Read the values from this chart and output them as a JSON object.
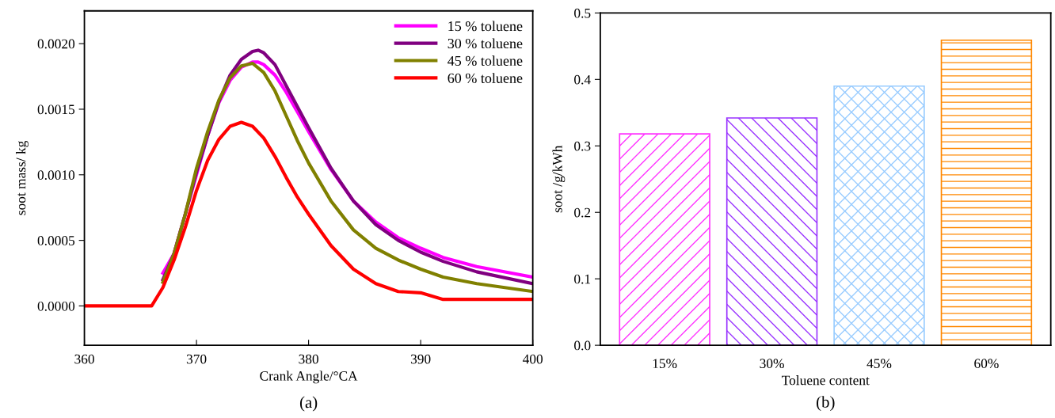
{
  "chart_data": [
    {
      "type": "line",
      "xlabel": "Crank Angle/°CA",
      "ylabel": "soot mass/ kg",
      "annotations": [
        "(a)"
      ],
      "legend": "top right",
      "grid": false,
      "xlim": [
        360,
        400
      ],
      "xticks": [
        360,
        370,
        380,
        390,
        400
      ],
      "ylim": [
        -0.0003,
        0.00225
      ],
      "yticks": [
        {
          "value": 0,
          "label": "0.0000"
        },
        {
          "value": 0.0005,
          "label": "0.0005"
        },
        {
          "value": 0.001,
          "label": "0.0010"
        },
        {
          "value": 0.0015,
          "label": "0.0015"
        },
        {
          "value": 0.002,
          "label": "0.0020"
        }
      ],
      "series": [
        {
          "name": "15 % toluene",
          "color": "#ff00ff",
          "x": [
            367,
            368,
            369,
            370,
            371,
            372,
            373,
            374,
            375,
            375.5,
            376,
            377,
            378,
            379,
            380,
            382,
            384,
            386,
            388,
            390,
            392,
            395,
            400
          ],
          "values": [
            0.00025,
            0.0004,
            0.0007,
            0.001,
            0.0013,
            0.00155,
            0.00172,
            0.00182,
            0.00186,
            0.00186,
            0.00184,
            0.00176,
            0.00163,
            0.00148,
            0.00133,
            0.00104,
            0.0008,
            0.00064,
            0.00052,
            0.00044,
            0.00037,
            0.0003,
            0.00022
          ]
        },
        {
          "name": "30 % toluene",
          "color": "#800080",
          "x": [
            367,
            368,
            369,
            370,
            371,
            372,
            373,
            374,
            375,
            375.5,
            376,
            377,
            378,
            379,
            380,
            382,
            384,
            386,
            388,
            390,
            392,
            395,
            400
          ],
          "values": [
            0.0002,
            0.0004,
            0.0007,
            0.00102,
            0.0013,
            0.00156,
            0.00176,
            0.00188,
            0.00194,
            0.00195,
            0.00193,
            0.00184,
            0.00168,
            0.00152,
            0.00136,
            0.00105,
            0.0008,
            0.00062,
            0.0005,
            0.00041,
            0.00034,
            0.00026,
            0.00017
          ]
        },
        {
          "name": "45 % toluene",
          "color": "#808000",
          "x": [
            367,
            368,
            369,
            370,
            371,
            372,
            373,
            374,
            375,
            376,
            377,
            378,
            379,
            380,
            382,
            384,
            386,
            388,
            390,
            392,
            395,
            400
          ],
          "values": [
            0.00018,
            0.0004,
            0.0007,
            0.00105,
            0.00133,
            0.00157,
            0.00174,
            0.00183,
            0.00185,
            0.00178,
            0.00164,
            0.00145,
            0.00126,
            0.00109,
            0.0008,
            0.00058,
            0.00044,
            0.00035,
            0.00028,
            0.00022,
            0.00017,
            0.00011
          ]
        },
        {
          "name": "60 % toluene",
          "color": "#ff0000",
          "x": [
            360,
            365.5,
            366,
            367,
            368,
            369,
            370,
            371,
            372,
            373,
            374,
            375,
            376,
            377,
            378,
            379,
            380,
            382,
            384,
            386,
            388,
            390,
            392,
            395,
            400
          ],
          "values": [
            0,
            0,
            0,
            0.00014,
            0.00035,
            0.0006,
            0.00088,
            0.00111,
            0.00127,
            0.00137,
            0.0014,
            0.00137,
            0.00128,
            0.00114,
            0.00098,
            0.00083,
            0.0007,
            0.00046,
            0.00028,
            0.00017,
            0.00011,
            0.0001,
            5e-05,
            5e-05,
            5e-05
          ]
        }
      ]
    },
    {
      "type": "bar",
      "xlabel": "Toluene content",
      "ylabel": "soot /g/kWh",
      "annotations": [
        "(b)"
      ],
      "grid": false,
      "categories": [
        "15%",
        "30%",
        "45%",
        "60%"
      ],
      "values": [
        0.318,
        0.342,
        0.39,
        0.459
      ],
      "colors": [
        "#ff33ff",
        "#9933ff",
        "#99ccff",
        "#ff8800"
      ],
      "ylim": [
        0,
        0.5
      ],
      "yticks": [
        {
          "value": 0,
          "label": "0.0"
        },
        0.1,
        0.2,
        0.3,
        0.4,
        0.5
      ]
    }
  ]
}
